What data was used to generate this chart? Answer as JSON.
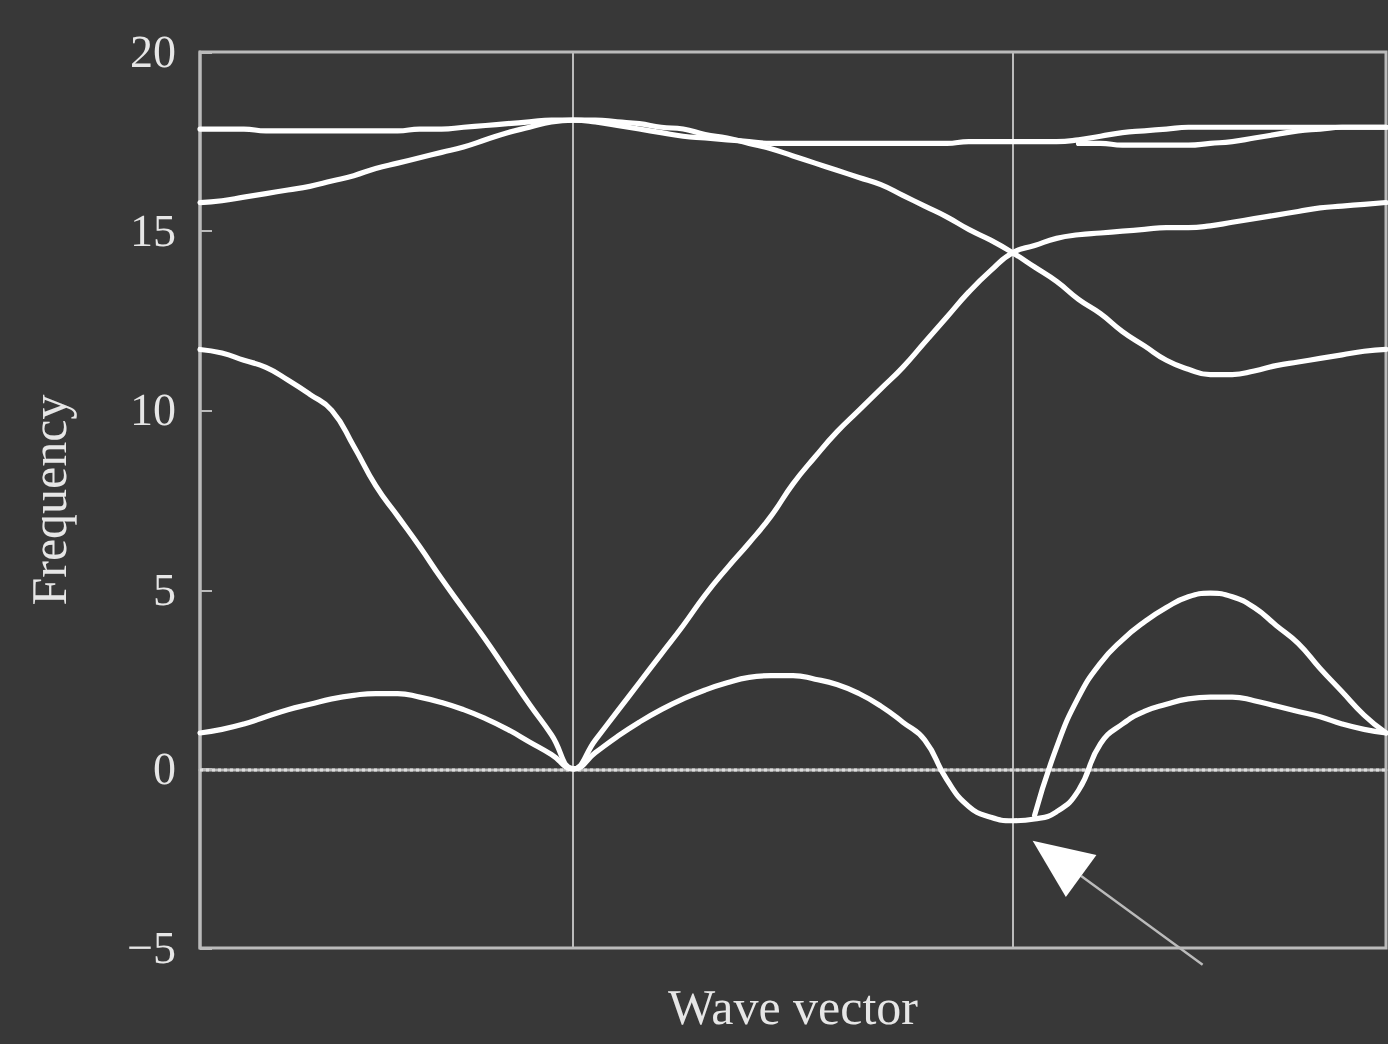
{
  "chart_data": {
    "type": "line",
    "xlabel": "Wave vector",
    "ylabel": "Frequency",
    "categories": [
      null,
      null,
      null,
      null,
      null,
      null,
      null,
      null,
      null,
      null,
      null,
      null,
      null,
      null,
      null,
      null,
      null,
      null,
      null,
      null,
      null,
      null,
      null,
      null,
      null,
      null,
      null,
      null,
      null,
      null,
      null,
      null,
      null,
      null,
      null,
      null,
      null,
      null,
      null,
      null,
      null,
      null,
      null,
      null,
      null,
      null,
      null,
      null,
      null,
      null,
      null,
      null,
      null,
      null,
      null
    ],
    "series": [
      {
        "color": "#ffffff",
        "values": [
          1.0,
          1.1,
          1.25,
          1.45,
          1.65,
          1.8,
          1.95,
          2.05,
          2.1,
          2.1,
          2.0,
          1.85,
          1.65,
          1.4,
          1.1,
          0.75,
          0.4,
          0,
          0.45,
          0.9,
          1.3,
          1.65,
          1.95,
          2.2,
          2.4,
          2.55,
          2.6,
          2.6,
          2.5,
          2.35,
          2.1,
          1.75,
          1.3,
          0.8,
          -0.3,
          -1.05,
          -1.35,
          -1.45,
          -1.4,
          -1.2,
          -0.6,
          0.7,
          1.25,
          1.6,
          1.8,
          1.95,
          2.0,
          2.0,
          1.9,
          1.75,
          1.6,
          1.45,
          1.25,
          1.1,
          1.0
        ]
      },
      {
        "color": "#ffffff",
        "values": [
          null,
          null,
          null,
          null,
          null,
          null,
          null,
          null,
          null,
          null,
          null,
          null,
          null,
          null,
          null,
          null,
          null,
          null,
          null,
          null,
          null,
          null,
          null,
          null,
          null,
          null,
          null,
          null,
          null,
          null,
          null,
          null,
          null,
          null,
          null,
          null,
          null,
          null,
          -1.3,
          0.6,
          2.0,
          2.95,
          3.6,
          4.1,
          4.5,
          4.8,
          4.9,
          4.8,
          4.5,
          4.0,
          3.5,
          2.8,
          2.15,
          1.5,
          1.0
        ]
      },
      {
        "color": "#ffffff",
        "values": [
          11.7,
          11.6,
          11.4,
          11.2,
          10.85,
          10.45,
          10.0,
          9.0,
          7.9,
          7.05,
          6.2,
          5.3,
          4.45,
          3.6,
          2.7,
          1.8,
          0.95,
          0,
          0.8,
          1.6,
          2.4,
          3.2,
          4.0,
          4.85,
          5.6,
          6.3,
          7.05,
          7.95,
          8.7,
          9.4,
          10.0,
          10.6,
          11.2,
          11.9,
          12.6,
          13.3,
          13.9,
          14.4,
          14.6,
          14.8,
          14.9,
          14.95,
          15.0,
          15.05,
          15.1,
          15.1,
          15.15,
          15.25,
          15.35,
          15.45,
          15.55,
          15.65,
          15.7,
          15.75,
          15.8
        ]
      },
      {
        "color": "#ffffff",
        "values": [
          15.8,
          15.85,
          15.95,
          16.05,
          16.15,
          16.25,
          16.4,
          16.55,
          16.75,
          16.9,
          17.05,
          17.2,
          17.35,
          17.55,
          17.75,
          17.9,
          18.05,
          18.1,
          18.1,
          18.05,
          18.0,
          17.9,
          17.85,
          17.7,
          17.6,
          17.45,
          17.3,
          17.1,
          16.9,
          16.7,
          16.5,
          16.3,
          16.0,
          15.7,
          15.4,
          15.05,
          14.75,
          14.4,
          14.0,
          13.6,
          13.1,
          12.7,
          12.2,
          11.8,
          11.4,
          11.15,
          11.0,
          11.0,
          11.1,
          11.25,
          11.35,
          11.45,
          11.55,
          11.65,
          11.7
        ]
      },
      {
        "color": "#ffffff",
        "values": [
          17.85,
          17.85,
          17.85,
          17.8,
          17.8,
          17.8,
          17.8,
          17.8,
          17.8,
          17.8,
          17.85,
          17.85,
          17.9,
          17.95,
          18.0,
          18.05,
          18.1,
          18.1,
          18.05,
          17.95,
          17.85,
          17.75,
          17.65,
          17.6,
          17.55,
          17.5,
          17.45,
          17.45,
          17.45,
          17.45,
          17.45,
          17.45,
          17.45,
          17.45,
          17.45,
          17.5,
          17.5,
          17.5,
          17.5,
          17.5,
          17.55,
          17.65,
          17.75,
          17.8,
          17.85,
          17.9,
          17.9,
          17.9,
          17.9,
          17.9,
          17.9,
          17.9,
          17.9,
          17.9,
          17.9
        ]
      },
      {
        "color": "#ffffff",
        "values": [
          null,
          null,
          null,
          null,
          null,
          null,
          null,
          null,
          null,
          null,
          null,
          null,
          null,
          null,
          null,
          null,
          null,
          null,
          null,
          null,
          null,
          null,
          null,
          null,
          null,
          null,
          null,
          null,
          null,
          null,
          null,
          null,
          null,
          null,
          null,
          null,
          null,
          null,
          null,
          null,
          17.45,
          17.45,
          17.4,
          17.4,
          17.4,
          17.4,
          17.45,
          17.5,
          17.6,
          17.7,
          17.8,
          17.85,
          17.9,
          17.9,
          17.9
        ]
      }
    ],
    "ylim": [
      -5,
      20
    ],
    "yticks": [
      -5,
      0,
      5,
      10,
      15,
      20
    ],
    "tick_labels": "y",
    "marker": "none",
    "line_style": "solid",
    "ref_lines": [
      {
        "axis": "y",
        "value": 0,
        "color": "#dddddd",
        "line_style": "dotted"
      }
    ]
  }
}
